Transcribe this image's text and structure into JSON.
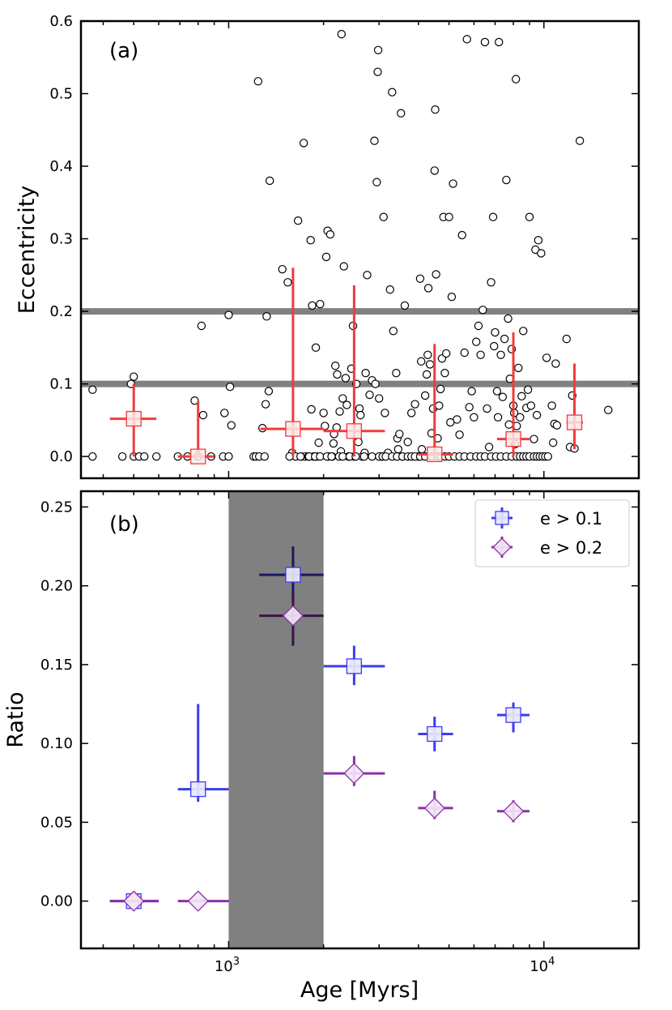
{
  "chart_data": [
    {
      "panel_label": "(a)",
      "type": "scatter",
      "xlabel": "",
      "ylabel": "Eccentricity",
      "xscale": "log",
      "xlim": [
        340,
        20000
      ],
      "ylim": [
        -0.03,
        0.6
      ],
      "yticks": [
        0.0,
        0.1,
        0.2,
        0.3,
        0.4,
        0.5,
        0.6
      ],
      "ytick_labels": [
        "0.0",
        "0.1",
        "0.2",
        "0.3",
        "0.4",
        "0.5",
        "0.6"
      ],
      "hlines": [
        0.1,
        0.2
      ],
      "hline_color": "#808080",
      "points_color": "#000000",
      "points": [
        [
          370,
          0
        ],
        [
          370,
          0.092
        ],
        [
          460,
          0
        ],
        [
          490,
          0.1
        ],
        [
          500,
          0.11
        ],
        [
          500,
          0
        ],
        [
          520,
          0
        ],
        [
          540,
          0
        ],
        [
          590,
          0
        ],
        [
          690,
          0
        ],
        [
          740,
          0
        ],
        [
          780,
          0.077
        ],
        [
          800,
          0
        ],
        [
          820,
          0.18
        ],
        [
          830,
          0.057
        ],
        [
          880,
          0
        ],
        [
          960,
          0
        ],
        [
          970,
          0.06
        ],
        [
          1000,
          0
        ],
        [
          1000,
          0.195
        ],
        [
          1010,
          0.096
        ],
        [
          1020,
          0.043
        ],
        [
          1200,
          0
        ],
        [
          1220,
          0
        ],
        [
          1240,
          0.517
        ],
        [
          1250,
          0
        ],
        [
          1280,
          0.039
        ],
        [
          1300,
          0
        ],
        [
          1310,
          0.072
        ],
        [
          1320,
          0.193
        ],
        [
          1340,
          0.09
        ],
        [
          1350,
          0.38
        ],
        [
          1480,
          0.258
        ],
        [
          1540,
          0.24
        ],
        [
          1590,
          0.005
        ],
        [
          1630,
          0
        ],
        [
          1660,
          0.325
        ],
        [
          1700,
          0
        ],
        [
          1730,
          0.432
        ],
        [
          1750,
          0
        ],
        [
          1790,
          0
        ],
        [
          1820,
          0.298
        ],
        [
          1830,
          0.065
        ],
        [
          1840,
          0.208
        ],
        [
          1860,
          0
        ],
        [
          1890,
          0.15
        ],
        [
          1900,
          0
        ],
        [
          1930,
          0.019
        ],
        [
          1950,
          0.21
        ],
        [
          2000,
          0.06
        ],
        [
          2020,
          0.042
        ],
        [
          2040,
          0.275
        ],
        [
          2060,
          0.311
        ],
        [
          2070,
          0
        ],
        [
          2100,
          0.306
        ],
        [
          2130,
          0
        ],
        [
          2150,
          0.018
        ],
        [
          2160,
          0.031
        ],
        [
          2180,
          0.125
        ],
        [
          2200,
          0.04
        ],
        [
          2210,
          0.113
        ],
        [
          2250,
          0.062
        ],
        [
          2270,
          0.007
        ],
        [
          2280,
          0.582
        ],
        [
          2300,
          0.08
        ],
        [
          2320,
          0.262
        ],
        [
          2350,
          0.108
        ],
        [
          2370,
          0.071
        ],
        [
          2400,
          0
        ],
        [
          2450,
          0.121
        ],
        [
          2480,
          0.18
        ],
        [
          2500,
          0
        ],
        [
          2540,
          0.1
        ],
        [
          2580,
          0.02
        ],
        [
          2600,
          0.066
        ],
        [
          2620,
          0.057
        ],
        [
          2650,
          0
        ],
        [
          2700,
          0.005
        ],
        [
          2720,
          0.115
        ],
        [
          2750,
          0.25
        ],
        [
          2800,
          0.085
        ],
        [
          2850,
          0.105
        ],
        [
          2900,
          0.435
        ],
        [
          2920,
          0.1
        ],
        [
          2950,
          0.378
        ],
        [
          2970,
          0.53
        ],
        [
          2980,
          0.56
        ],
        [
          3000,
          0.08
        ],
        [
          3050,
          0
        ],
        [
          3100,
          0.33
        ],
        [
          3130,
          0.06
        ],
        [
          3180,
          0.002
        ],
        [
          3200,
          0.005
        ],
        [
          3250,
          0.23
        ],
        [
          3300,
          0.502
        ],
        [
          3330,
          0.173
        ],
        [
          3400,
          0.115
        ],
        [
          3430,
          0.025
        ],
        [
          3450,
          0.01
        ],
        [
          3480,
          0.031
        ],
        [
          3520,
          0.473
        ],
        [
          3560,
          0
        ],
        [
          3620,
          0.208
        ],
        [
          3700,
          0.02
        ],
        [
          3800,
          0.06
        ],
        [
          3900,
          0.072
        ],
        [
          4000,
          0
        ],
        [
          4050,
          0.245
        ],
        [
          4080,
          0.131
        ],
        [
          4100,
          0.01
        ],
        [
          4200,
          0.084
        ],
        [
          4250,
          0.113
        ],
        [
          4280,
          0.14
        ],
        [
          4300,
          0.232
        ],
        [
          4350,
          0.127
        ],
        [
          4400,
          0.032
        ],
        [
          4450,
          0.066
        ],
        [
          4500,
          0.394
        ],
        [
          4520,
          0.478
        ],
        [
          4550,
          0.251
        ],
        [
          4600,
          0.025
        ],
        [
          4650,
          0.07
        ],
        [
          4700,
          0.093
        ],
        [
          4750,
          0.135
        ],
        [
          4800,
          0.33
        ],
        [
          4850,
          0.115
        ],
        [
          4900,
          0.142
        ],
        [
          5000,
          0.33
        ],
        [
          5050,
          0.047
        ],
        [
          5100,
          0.22
        ],
        [
          5150,
          0.376
        ],
        [
          5300,
          0.051
        ],
        [
          5400,
          0.03
        ],
        [
          5500,
          0.305
        ],
        [
          5600,
          0.143
        ],
        [
          5700,
          0.575
        ],
        [
          5800,
          0.068
        ],
        [
          5900,
          0.09
        ],
        [
          6000,
          0.054
        ],
        [
          6100,
          0.158
        ],
        [
          6200,
          0.18
        ],
        [
          6300,
          0.14
        ],
        [
          6400,
          0.202
        ],
        [
          6500,
          0.571
        ],
        [
          6600,
          0.066
        ],
        [
          6700,
          0.013
        ],
        [
          6800,
          0.24
        ],
        [
          6900,
          0.33
        ],
        [
          6950,
          0.152
        ],
        [
          7000,
          0.171
        ],
        [
          7100,
          0.09
        ],
        [
          7150,
          0.054
        ],
        [
          7200,
          0.571
        ],
        [
          7300,
          0.14
        ],
        [
          7400,
          0.082
        ],
        [
          7500,
          0.162
        ],
        [
          7600,
          0.381
        ],
        [
          7700,
          0.19
        ],
        [
          7750,
          0.044
        ],
        [
          7800,
          0.107
        ],
        [
          7900,
          0.148
        ],
        [
          8000,
          0.07
        ],
        [
          8050,
          0.06
        ],
        [
          8100,
          0.017
        ],
        [
          8150,
          0.52
        ],
        [
          8200,
          0.042
        ],
        [
          8300,
          0.122
        ],
        [
          8400,
          0.054
        ],
        [
          8500,
          0.083
        ],
        [
          8600,
          0.173
        ],
        [
          8800,
          0.067
        ],
        [
          8900,
          0.092
        ],
        [
          9000,
          0.33
        ],
        [
          9100,
          0.07
        ],
        [
          9300,
          0.024
        ],
        [
          9400,
          0.285
        ],
        [
          9500,
          0.057
        ],
        [
          9600,
          0.298
        ],
        [
          9800,
          0.28
        ],
        [
          10200,
          0.136
        ],
        [
          10600,
          0.07
        ],
        [
          10700,
          0.019
        ],
        [
          10800,
          0.045
        ],
        [
          10900,
          0.128
        ],
        [
          11000,
          0.043
        ],
        [
          11800,
          0.162
        ],
        [
          12100,
          0.013
        ],
        [
          12300,
          0.084
        ],
        [
          12500,
          0.011
        ],
        [
          13000,
          0.435
        ],
        [
          16000,
          0.064
        ]
      ],
      "zero_cluster_x": [
        1560,
        1690,
        1800,
        1880,
        1950,
        2050,
        2120,
        2240,
        2300,
        2420,
        2530,
        2690,
        2850,
        3000,
        3080,
        3150,
        3300,
        3420,
        3560,
        3700,
        3800,
        3900,
        4050,
        4200,
        4400,
        4600,
        4700,
        4850,
        5000,
        5200,
        5400,
        5600,
        5850,
        6100,
        6300,
        6500,
        6800,
        7050,
        7300,
        7600,
        7900,
        8200,
        8400,
        8600,
        8800,
        9000,
        9300,
        9500,
        9700,
        9900,
        10100,
        10300
      ],
      "binned_color": "#f03c3c",
      "binned": [
        {
          "x": 500,
          "x_lo": 420,
          "x_hi": 590,
          "y": 0.052,
          "y_lo": 0.0,
          "y_hi": 0.1
        },
        {
          "x": 800,
          "x_lo": 690,
          "x_hi": 900,
          "y": 0.0,
          "y_lo": 0.0,
          "y_hi": 0.076
        },
        {
          "x": 1600,
          "x_lo": 1260,
          "x_hi": 2000,
          "y": 0.038,
          "y_lo": 0.0,
          "y_hi": 0.26
        },
        {
          "x": 2500,
          "x_lo": 2000,
          "x_hi": 3130,
          "y": 0.035,
          "y_lo": 0.0,
          "y_hi": 0.236
        },
        {
          "x": 4500,
          "x_lo": 3990,
          "x_hi": 5150,
          "y": 0.003,
          "y_lo": 0.0,
          "y_hi": 0.155
        },
        {
          "x": 8000,
          "x_lo": 7100,
          "x_hi": 9000,
          "y": 0.024,
          "y_lo": 0.0,
          "y_hi": 0.171
        },
        {
          "x": 12500,
          "x_lo": 11800,
          "x_hi": 13300,
          "y": 0.047,
          "y_lo": 0.01,
          "y_hi": 0.128
        }
      ]
    },
    {
      "panel_label": "(b)",
      "type": "scatter",
      "xlabel": "Age [Myrs]",
      "ylabel": "Ratio",
      "xscale": "log",
      "xlim": [
        340,
        20000
      ],
      "ylim": [
        -0.03,
        0.26
      ],
      "yticks": [
        0.0,
        0.05,
        0.1,
        0.15,
        0.2,
        0.25
      ],
      "ytick_labels": [
        "0.00",
        "0.05",
        "0.10",
        "0.15",
        "0.20",
        "0.25"
      ],
      "xticks": [
        1000,
        10000
      ],
      "shaded_x_range": [
        1000,
        2000
      ],
      "shade_color": "#808080",
      "legend_position": "top-right",
      "series": [
        {
          "name": "e > 0.1",
          "marker": "square",
          "color": "#3c3cf0",
          "points": [
            {
              "x": 500,
              "x_lo": 420,
              "x_hi": 600,
              "y": 0.0,
              "y_lo": 0.0,
              "y_hi": 0.0
            },
            {
              "x": 800,
              "x_lo": 690,
              "x_hi": 1000,
              "y": 0.071,
              "y_lo": 0.063,
              "y_hi": 0.125
            },
            {
              "x": 1600,
              "x_lo": 1250,
              "x_hi": 2000,
              "y": 0.207,
              "y_lo": 0.191,
              "y_hi": 0.225
            },
            {
              "x": 2500,
              "x_lo": 2000,
              "x_hi": 3130,
              "y": 0.149,
              "y_lo": 0.137,
              "y_hi": 0.162
            },
            {
              "x": 4500,
              "x_lo": 3990,
              "x_hi": 5150,
              "y": 0.106,
              "y_lo": 0.095,
              "y_hi": 0.117
            },
            {
              "x": 8000,
              "x_lo": 7100,
              "x_hi": 9000,
              "y": 0.118,
              "y_lo": 0.107,
              "y_hi": 0.126
            }
          ]
        },
        {
          "name": "e > 0.2",
          "marker": "diamond",
          "color": "#8c30a8",
          "points": [
            {
              "x": 500,
              "x_lo": 420,
              "x_hi": 600,
              "y": 0.0,
              "y_lo": 0.0,
              "y_hi": 0.0
            },
            {
              "x": 800,
              "x_lo": 690,
              "x_hi": 1000,
              "y": 0.0,
              "y_lo": 0.0,
              "y_hi": 0.0
            },
            {
              "x": 1600,
              "x_lo": 1250,
              "x_hi": 2000,
              "y": 0.181,
              "y_lo": 0.162,
              "y_hi": 0.195
            },
            {
              "x": 2500,
              "x_lo": 2000,
              "x_hi": 3130,
              "y": 0.081,
              "y_lo": 0.073,
              "y_hi": 0.092
            },
            {
              "x": 4500,
              "x_lo": 3990,
              "x_hi": 5150,
              "y": 0.059,
              "y_lo": 0.052,
              "y_hi": 0.07
            },
            {
              "x": 8000,
              "x_lo": 7100,
              "x_hi": 9000,
              "y": 0.057,
              "y_lo": 0.05,
              "y_hi": 0.064
            }
          ]
        }
      ]
    }
  ]
}
